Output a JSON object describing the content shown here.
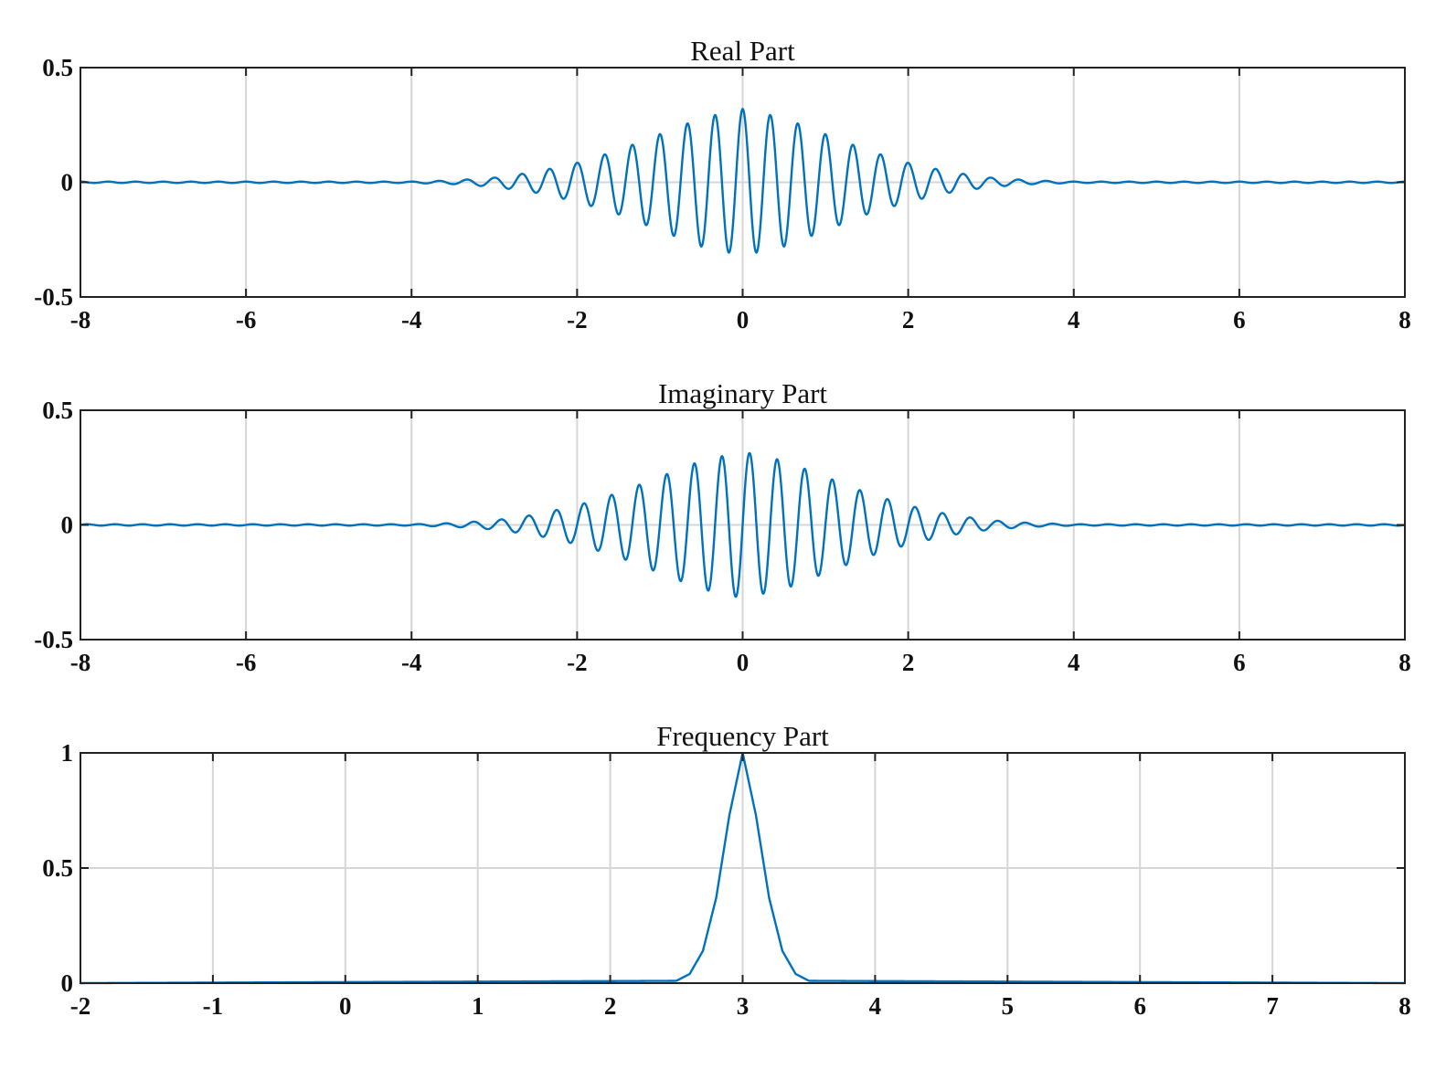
{
  "chart_data": [
    {
      "type": "line",
      "title": "Real Part",
      "xlabel": "",
      "ylabel": "",
      "xlim": [
        -8,
        8
      ],
      "ylim": [
        -0.5,
        0.5
      ],
      "xticks": [
        -8,
        -6,
        -4,
        -2,
        0,
        2,
        4,
        6,
        8
      ],
      "xtick_labels": [
        "-8",
        "-6",
        "-4",
        "-2",
        "0",
        "2",
        "4",
        "6",
        "8"
      ],
      "yticks": [
        -0.5,
        0,
        0.5
      ],
      "ytick_labels": [
        "-0.5",
        "0",
        "0.5"
      ],
      "grid": true,
      "series": [
        {
          "color": "#0072BD",
          "x": [
            -4.0,
            -3.5,
            -3.0,
            -2.5,
            -2.0,
            -1.5,
            -1.0,
            -0.5,
            0.0,
            0.5,
            1.0,
            1.5,
            2.0,
            2.5,
            3.0,
            3.5,
            4.0
          ],
          "envelope": [
            0.003,
            0.008,
            0.02,
            0.045,
            0.085,
            0.14,
            0.21,
            0.28,
            0.32,
            0.28,
            0.21,
            0.14,
            0.085,
            0.045,
            0.02,
            0.008,
            0.003
          ],
          "oscillation_frequency": 3,
          "component": "real"
        }
      ]
    },
    {
      "type": "line",
      "title": "Imaginary Part",
      "xlabel": "",
      "ylabel": "",
      "xlim": [
        -8,
        8
      ],
      "ylim": [
        -0.5,
        0.5
      ],
      "xticks": [
        -8,
        -6,
        -4,
        -2,
        0,
        2,
        4,
        6,
        8
      ],
      "xtick_labels": [
        "-8",
        "-6",
        "-4",
        "-2",
        "0",
        "2",
        "4",
        "6",
        "8"
      ],
      "yticks": [
        -0.5,
        0,
        0.5
      ],
      "ytick_labels": [
        "-0.5",
        "0",
        "0.5"
      ],
      "grid": true,
      "series": [
        {
          "color": "#0072BD",
          "x": [
            -4.0,
            -3.5,
            -3.0,
            -2.5,
            -2.0,
            -1.5,
            -1.0,
            -0.5,
            0.0,
            0.5,
            1.0,
            1.5,
            2.0,
            2.5,
            3.0,
            3.5,
            4.0
          ],
          "envelope": [
            0.003,
            0.008,
            0.02,
            0.045,
            0.085,
            0.14,
            0.21,
            0.28,
            0.32,
            0.28,
            0.21,
            0.14,
            0.085,
            0.045,
            0.02,
            0.008,
            0.003
          ],
          "oscillation_frequency": 3,
          "component": "imaginary"
        }
      ]
    },
    {
      "type": "line",
      "title": "Frequency Part",
      "xlabel": "",
      "ylabel": "",
      "xlim": [
        -2,
        8
      ],
      "ylim": [
        0,
        1
      ],
      "xticks": [
        -2,
        -1,
        0,
        1,
        2,
        3,
        4,
        5,
        6,
        7,
        8
      ],
      "xtick_labels": [
        "-2",
        "-1",
        "0",
        "1",
        "2",
        "3",
        "4",
        "5",
        "6",
        "7",
        "8"
      ],
      "yticks": [
        0,
        0.5,
        1
      ],
      "ytick_labels": [
        "0",
        "0.5",
        "1"
      ],
      "grid": true,
      "series": [
        {
          "color": "#0072BD",
          "x": [
            -2.0,
            2.5,
            2.6,
            2.7,
            2.8,
            2.9,
            3.0,
            3.1,
            3.2,
            3.3,
            3.4,
            3.5,
            8.0
          ],
          "y": [
            0.0,
            0.01,
            0.04,
            0.14,
            0.37,
            0.73,
            1.0,
            0.73,
            0.37,
            0.14,
            0.04,
            0.01,
            0.0
          ]
        }
      ]
    }
  ]
}
